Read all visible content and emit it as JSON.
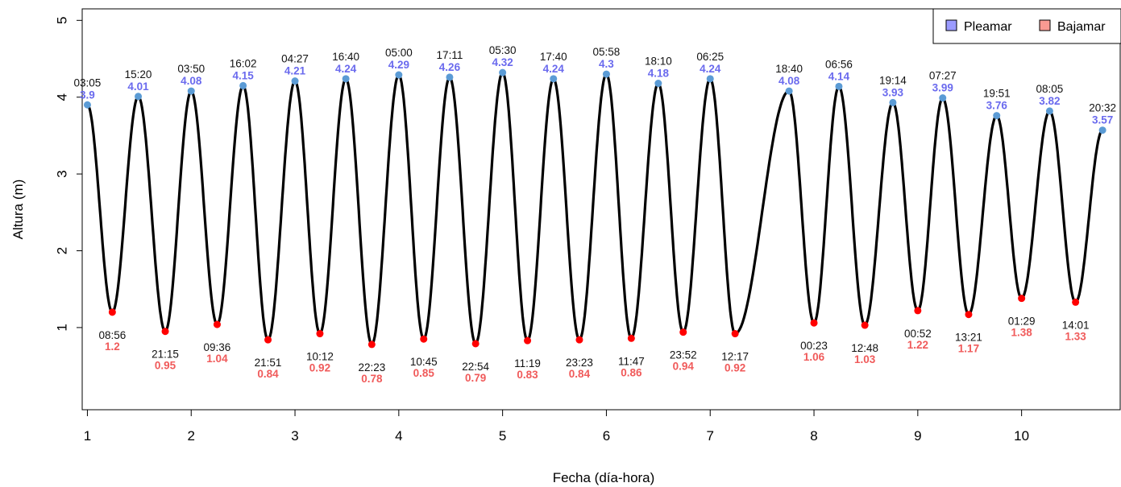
{
  "chart_data": {
    "type": "line",
    "xlabel": "Fecha (día-hora)",
    "ylabel": "Altura (m)",
    "xlim": [
      0.95,
      10.95
    ],
    "ylim": [
      -0.07,
      5.15
    ],
    "x_ticks": [
      1,
      2,
      3,
      4,
      5,
      6,
      7,
      8,
      9,
      10
    ],
    "y_ticks": [
      1,
      2,
      3,
      4,
      5
    ],
    "colors": {
      "curve": "#000000",
      "high": "#5b9bd5",
      "high_text": "#6a6aee",
      "low": "#ff0000",
      "low_text": "#f05a5a",
      "legend_high": "#9b9bff",
      "legend_low": "#fa9a92"
    },
    "legend": {
      "position": "top-right",
      "entries": [
        "Pleamar",
        "Bajamar"
      ]
    },
    "series": [
      {
        "name": "Pleamar",
        "points": [
          {
            "x": 1.0,
            "y": 3.9,
            "time": "03:05",
            "label": "3.9"
          },
          {
            "x": 1.49,
            "y": 4.01,
            "time": "15:20",
            "label": "4.01"
          },
          {
            "x": 2.0,
            "y": 4.08,
            "time": "03:50",
            "label": "4.08"
          },
          {
            "x": 2.5,
            "y": 4.15,
            "time": "16:02",
            "label": "4.15"
          },
          {
            "x": 3.0,
            "y": 4.21,
            "time": "04:27",
            "label": "4.21"
          },
          {
            "x": 3.49,
            "y": 4.24,
            "time": "16:40",
            "label": "4.24"
          },
          {
            "x": 4.0,
            "y": 4.29,
            "time": "05:00",
            "label": "4.29"
          },
          {
            "x": 4.49,
            "y": 4.26,
            "time": "17:11",
            "label": "4.26"
          },
          {
            "x": 5.0,
            "y": 4.32,
            "time": "05:30",
            "label": "4.32"
          },
          {
            "x": 5.49,
            "y": 4.24,
            "time": "17:40",
            "label": "4.24"
          },
          {
            "x": 6.0,
            "y": 4.3,
            "time": "05:58",
            "label": "4.3"
          },
          {
            "x": 6.5,
            "y": 4.18,
            "time": "18:10",
            "label": "4.18"
          },
          {
            "x": 7.0,
            "y": 4.24,
            "time": "06:25",
            "label": "4.24"
          },
          {
            "x": 7.76,
            "y": 4.08,
            "time": "18:40",
            "label": "4.08"
          },
          {
            "x": 8.24,
            "y": 4.14,
            "time": "06:56",
            "label": "4.14"
          },
          {
            "x": 8.76,
            "y": 3.93,
            "time": "19:14",
            "label": "3.93"
          },
          {
            "x": 9.24,
            "y": 3.99,
            "time": "07:27",
            "label": "3.99"
          },
          {
            "x": 9.76,
            "y": 3.76,
            "time": "19:51",
            "label": "3.76"
          },
          {
            "x": 10.27,
            "y": 3.82,
            "time": "08:05",
            "label": "3.82"
          },
          {
            "x": 10.78,
            "y": 3.57,
            "time": "20:32",
            "label": "3.57"
          }
        ]
      },
      {
        "name": "Bajamar",
        "points": [
          {
            "x": 1.24,
            "y": 1.2,
            "time": "08:56",
            "label": "1.2"
          },
          {
            "x": 1.75,
            "y": 0.95,
            "time": "21:15",
            "label": "0.95"
          },
          {
            "x": 2.25,
            "y": 1.04,
            "time": "09:36",
            "label": "1.04"
          },
          {
            "x": 2.74,
            "y": 0.84,
            "time": "21:51",
            "label": "0.84"
          },
          {
            "x": 3.24,
            "y": 0.92,
            "time": "10:12",
            "label": "0.92"
          },
          {
            "x": 3.74,
            "y": 0.78,
            "time": "22:23",
            "label": "0.78"
          },
          {
            "x": 4.24,
            "y": 0.85,
            "time": "10:45",
            "label": "0.85"
          },
          {
            "x": 4.74,
            "y": 0.79,
            "time": "22:54",
            "label": "0.79"
          },
          {
            "x": 5.24,
            "y": 0.83,
            "time": "11:19",
            "label": "0.83"
          },
          {
            "x": 5.74,
            "y": 0.84,
            "time": "23:23",
            "label": "0.84"
          },
          {
            "x": 6.24,
            "y": 0.86,
            "time": "11:47",
            "label": "0.86"
          },
          {
            "x": 6.74,
            "y": 0.94,
            "time": "23:52",
            "label": "0.94"
          },
          {
            "x": 7.24,
            "y": 0.92,
            "time": "12:17",
            "label": "0.92"
          },
          {
            "x": 8.0,
            "y": 1.06,
            "time": "00:23",
            "label": "1.06"
          },
          {
            "x": 8.49,
            "y": 1.03,
            "time": "12:48",
            "label": "1.03"
          },
          {
            "x": 9.0,
            "y": 1.22,
            "time": "00:52",
            "label": "1.22"
          },
          {
            "x": 9.49,
            "y": 1.17,
            "time": "13:21",
            "label": "1.17"
          },
          {
            "x": 10.0,
            "y": 1.38,
            "time": "01:29",
            "label": "1.38"
          },
          {
            "x": 10.52,
            "y": 1.33,
            "time": "14:01",
            "label": "1.33"
          }
        ]
      }
    ]
  }
}
